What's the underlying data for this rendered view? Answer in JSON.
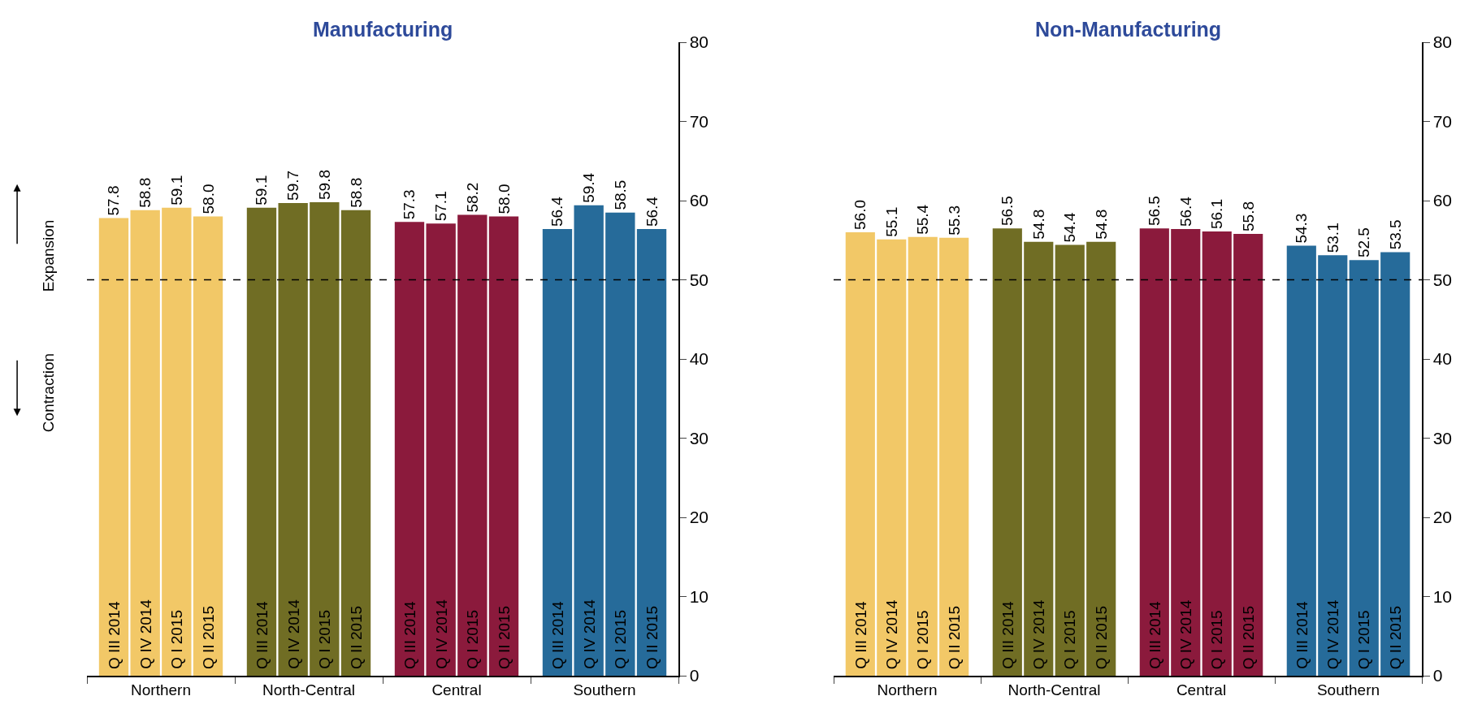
{
  "chart_data": [
    {
      "type": "bar",
      "title": "Manufacturing",
      "categories": [
        "Northern",
        "North-Central",
        "Central",
        "Southern"
      ],
      "series": [
        {
          "name": "Q III 2014",
          "colors": [
            "#f2c867",
            "#706d24",
            "#8b1a3c",
            "#266b9a"
          ],
          "values": [
            57.8,
            59.1,
            57.3,
            56.4
          ],
          "value_labels": [
            "57.8",
            "59.1",
            "57.3",
            "56.4"
          ]
        },
        {
          "name": "Q IV 2014",
          "colors": [
            "#f2c867",
            "#706d24",
            "#8b1a3c",
            "#266b9a"
          ],
          "values": [
            58.8,
            59.7,
            57.1,
            59.4
          ],
          "value_labels": [
            "58.8",
            "59.7",
            "57.1",
            "59.4"
          ]
        },
        {
          "name": "Q I 2015",
          "colors": [
            "#f2c867",
            "#706d24",
            "#8b1a3c",
            "#266b9a"
          ],
          "values": [
            59.1,
            59.8,
            58.2,
            58.5
          ],
          "value_labels": [
            "59.1",
            "59.8",
            "58.2",
            "58.5"
          ]
        },
        {
          "name": "Q II 2015",
          "colors": [
            "#f2c867",
            "#706d24",
            "#8b1a3c",
            "#266b9a"
          ],
          "values": [
            58.0,
            58.8,
            58.0,
            56.4
          ],
          "value_labels": [
            "58.0",
            "58.8",
            "58.0",
            "56.4"
          ]
        }
      ],
      "ylim": [
        0,
        80
      ],
      "yticks": [
        0,
        10,
        20,
        30,
        40,
        50,
        60,
        70,
        80
      ],
      "legend": false,
      "grid": false,
      "ref_lines": [
        {
          "axis": "y",
          "value": 50,
          "line_style": "dashed",
          "color": "#000000"
        }
      ],
      "annotations": [
        "Expansion",
        "Contraction"
      ]
    },
    {
      "type": "bar",
      "title": "Non-Manufacturing",
      "categories": [
        "Northern",
        "North-Central",
        "Central",
        "Southern"
      ],
      "series": [
        {
          "name": "Q III 2014",
          "colors": [
            "#f2c867",
            "#706d24",
            "#8b1a3c",
            "#266b9a"
          ],
          "values": [
            56.0,
            56.5,
            56.5,
            54.3
          ],
          "value_labels": [
            "56.0",
            "56.5",
            "56.5",
            "54.3"
          ]
        },
        {
          "name": "Q IV 2014",
          "colors": [
            "#f2c867",
            "#706d24",
            "#8b1a3c",
            "#266b9a"
          ],
          "values": [
            55.1,
            54.8,
            56.4,
            53.1
          ],
          "value_labels": [
            "55.1",
            "54.8",
            "56.4",
            "53.1"
          ]
        },
        {
          "name": "Q I 2015",
          "colors": [
            "#f2c867",
            "#706d24",
            "#8b1a3c",
            "#266b9a"
          ],
          "values": [
            55.4,
            54.4,
            56.1,
            52.5
          ],
          "value_labels": [
            "55.4",
            "54.4",
            "56.1",
            "52.5"
          ]
        },
        {
          "name": "Q II 2015",
          "colors": [
            "#f2c867",
            "#706d24",
            "#8b1a3c",
            "#266b9a"
          ],
          "values": [
            55.3,
            54.8,
            55.8,
            53.5
          ],
          "value_labels": [
            "55.3",
            "54.8",
            "55.8",
            "53.5"
          ]
        }
      ],
      "ylim": [
        0,
        80
      ],
      "yticks": [
        0,
        10,
        20,
        30,
        40,
        50,
        60,
        70,
        80
      ],
      "legend": false,
      "grid": false,
      "ref_lines": [
        {
          "axis": "y",
          "value": 50,
          "line_style": "dashed",
          "color": "#000000"
        }
      ]
    }
  ]
}
